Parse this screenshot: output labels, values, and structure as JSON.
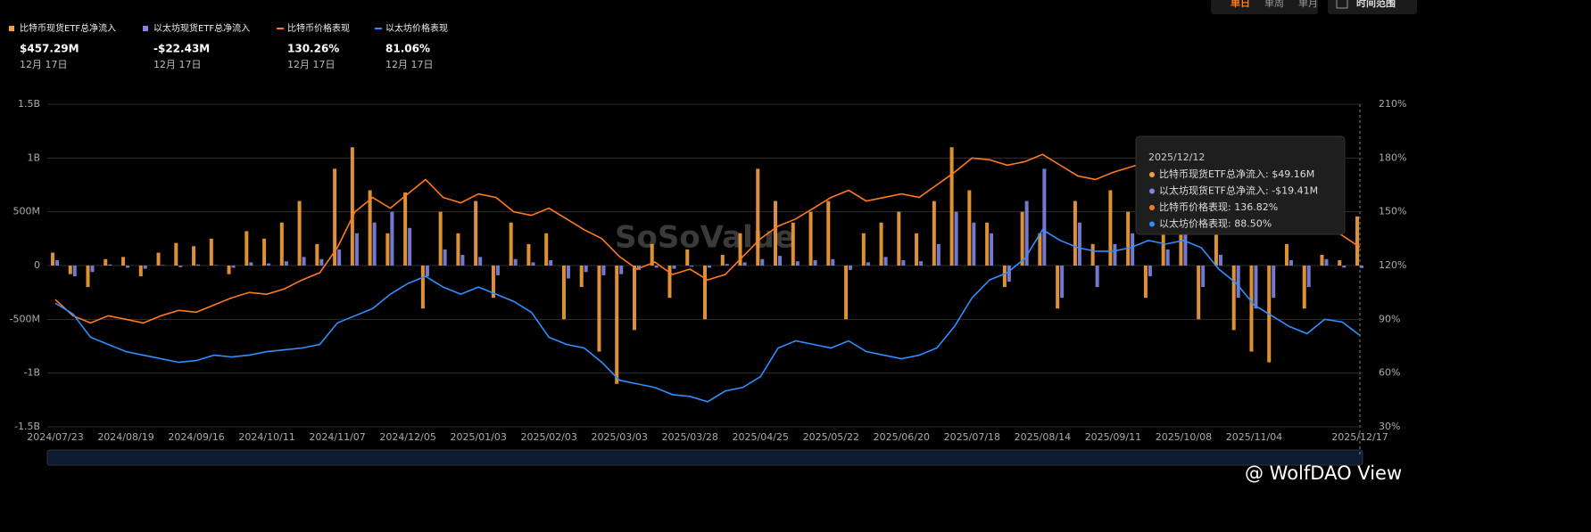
{
  "chart_data": {
    "type": "bar-line",
    "controls": [
      "单日",
      "单周",
      "单月",
      "时间范围"
    ],
    "watermark": "SoSoValue",
    "credit": "@ WolfDAO View",
    "categories": [
      "2024/07/23",
      null,
      null,
      null,
      "2024/08/19",
      null,
      null,
      null,
      "2024/09/16",
      null,
      null,
      null,
      "2024/10/11",
      null,
      null,
      null,
      "2024/11/07",
      null,
      null,
      null,
      "2024/12/05",
      null,
      null,
      null,
      "2025/01/03",
      null,
      null,
      null,
      "2025/02/03",
      null,
      null,
      null,
      "2025/03/03",
      null,
      null,
      null,
      "2025/03/28",
      null,
      null,
      null,
      "2025/04/25",
      null,
      null,
      null,
      "2025/05/22",
      null,
      null,
      null,
      "2025/06/20",
      null,
      null,
      null,
      "2025/07/18",
      null,
      null,
      null,
      "2025/08/14",
      null,
      null,
      null,
      "2025/09/11",
      null,
      null,
      null,
      "2025/10/08",
      null,
      null,
      null,
      "2025/11/04",
      null,
      null,
      null,
      null,
      null,
      "2025/12/17"
    ],
    "ylim": [
      -1500,
      1500
    ],
    "yticks": [
      {
        "value": -1500,
        "label": "-1.5B"
      },
      {
        "value": -1000,
        "label": "-1B"
      },
      {
        "value": -500,
        "label": "-500M"
      },
      0,
      {
        "value": 500,
        "label": "500M"
      },
      {
        "value": 1000,
        "label": "1B"
      },
      {
        "value": 1500,
        "label": "1.5B"
      }
    ],
    "y2lim": [
      30,
      210
    ],
    "y2ticks": [
      {
        "value": 30,
        "label": "30%"
      },
      {
        "value": 60,
        "label": "60%"
      },
      {
        "value": 90,
        "label": "90%"
      },
      {
        "value": 120,
        "label": "120%"
      },
      {
        "value": 150,
        "label": "150%"
      },
      {
        "value": 180,
        "label": "180%"
      },
      {
        "value": 210,
        "label": "210%"
      }
    ],
    "grid": true,
    "series": [
      {
        "name": "比特币现货ETF总净流入",
        "kind": "bar",
        "color": "#f5a03c",
        "latest": "$457.29M",
        "latest_date": "12月 17日",
        "values": [
          120,
          -80,
          -200,
          60,
          80,
          -100,
          120,
          210,
          180,
          250,
          -80,
          320,
          250,
          400,
          600,
          200,
          900,
          1100,
          700,
          300,
          680,
          -400,
          500,
          300,
          600,
          -300,
          400,
          200,
          300,
          -500,
          -200,
          -800,
          -1100,
          -600,
          200,
          -300,
          150,
          -500,
          100,
          300,
          900,
          600,
          400,
          500,
          600,
          -500,
          300,
          400,
          500,
          300,
          600,
          1100,
          700,
          400,
          -200,
          500,
          300,
          -400,
          600,
          200,
          700,
          500,
          -300,
          600,
          900,
          -500,
          300,
          -600,
          -800,
          -900,
          200,
          -400,
          100,
          49.16,
          457.29
        ]
      },
      {
        "name": "以太坊现货ETF总净流入",
        "kind": "bar",
        "color": "#7f86e8",
        "latest": "-$22.43M",
        "latest_date": "12月 17日",
        "values": [
          50,
          -100,
          -60,
          10,
          -20,
          -30,
          5,
          -15,
          10,
          5,
          -20,
          30,
          20,
          40,
          80,
          60,
          150,
          300,
          400,
          500,
          350,
          -100,
          150,
          100,
          80,
          -90,
          60,
          30,
          50,
          -120,
          -60,
          -90,
          -80,
          -40,
          -20,
          -30,
          -10,
          -20,
          15,
          30,
          60,
          90,
          40,
          50,
          60,
          -40,
          30,
          80,
          50,
          40,
          200,
          500,
          400,
          300,
          -150,
          600,
          900,
          -300,
          400,
          -200,
          200,
          300,
          -100,
          150,
          400,
          -200,
          100,
          -300,
          -400,
          -300,
          50,
          -200,
          60,
          -19.41,
          -22.43
        ]
      },
      {
        "name": "比特币价格表现",
        "kind": "line",
        "axis": "y2",
        "color": "#ff7a1f",
        "latest": "130.26%",
        "latest_date": "12月 17日",
        "values": [
          101,
          92,
          88,
          92,
          90,
          88,
          92,
          95,
          94,
          98,
          102,
          105,
          104,
          107,
          112,
          116,
          130,
          150,
          158,
          152,
          160,
          168,
          158,
          155,
          160,
          158,
          150,
          148,
          152,
          146,
          140,
          135,
          125,
          118,
          122,
          115,
          118,
          112,
          115,
          125,
          135,
          142,
          146,
          152,
          158,
          162,
          156,
          158,
          160,
          158,
          165,
          172,
          180,
          179,
          176,
          178,
          182,
          176,
          170,
          168,
          172,
          175,
          178,
          182,
          186,
          178,
          168,
          162,
          164,
          152,
          148,
          140,
          142,
          136.82,
          130.26
        ]
      },
      {
        "name": "以太坊价格表现",
        "kind": "line",
        "axis": "y2",
        "color": "#2f8fff",
        "latest": "81.06%",
        "latest_date": "12月 17日",
        "values": [
          99,
          93,
          80,
          76,
          72,
          70,
          68,
          66,
          67,
          70,
          69,
          70,
          72,
          73,
          74,
          76,
          88,
          92,
          96,
          104,
          110,
          114,
          108,
          104,
          108,
          104,
          100,
          94,
          80,
          76,
          74,
          66,
          56,
          54,
          52,
          48,
          47,
          44,
          50,
          52,
          58,
          74,
          78,
          76,
          74,
          78,
          72,
          70,
          68,
          70,
          74,
          86,
          102,
          112,
          116,
          124,
          140,
          134,
          130,
          128,
          128,
          130,
          134,
          132,
          134,
          130,
          118,
          110,
          98,
          92,
          86,
          82,
          90,
          88.5,
          81.06
        ]
      }
    ],
    "tooltip": {
      "date": "2025/12/12",
      "items": [
        "比特币现货ETF总净流入: $49.16M",
        "以太坊现货ETF总净流入: -$19.41M",
        "比特币价格表现: 136.82%",
        "以太坊价格表现: 88.50%"
      ]
    }
  }
}
